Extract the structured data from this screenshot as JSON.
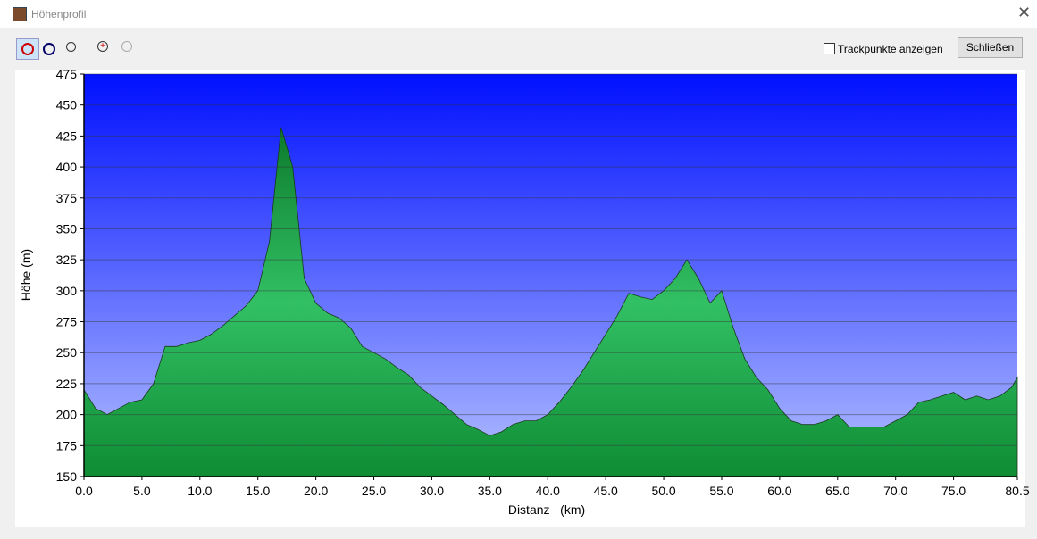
{
  "window": {
    "title": "Höhenprofil",
    "checkbox_label": "Trackpunkte anzeigen",
    "close_button": "Schließen"
  },
  "chart_data": {
    "type": "area",
    "xlabel": "Distanz   (km)",
    "ylabel": "Höhe (m)",
    "color": "#1faa48",
    "grid": true,
    "x": [
      0,
      1,
      2,
      3,
      4,
      5,
      6,
      7,
      8,
      9,
      10,
      11,
      12,
      13,
      14,
      15,
      16,
      17,
      18,
      19,
      20,
      21,
      22,
      23,
      24,
      25,
      26,
      27,
      28,
      29,
      30,
      31,
      32,
      33,
      34,
      35,
      36,
      37,
      38,
      39,
      40,
      41,
      42,
      43,
      44,
      45,
      46,
      47,
      48,
      49,
      50,
      51,
      52,
      53,
      54,
      55,
      56,
      57,
      58,
      59,
      60,
      61,
      62,
      63,
      64,
      65,
      66,
      67,
      68,
      69,
      70,
      71,
      72,
      73,
      74,
      75,
      76,
      77,
      78,
      79,
      80,
      80.5
    ],
    "values": [
      220,
      205,
      200,
      205,
      210,
      212,
      225,
      255,
      255,
      258,
      260,
      265,
      272,
      280,
      288,
      300,
      340,
      432,
      400,
      310,
      290,
      282,
      278,
      270,
      255,
      250,
      245,
      238,
      232,
      222,
      215,
      208,
      200,
      192,
      188,
      183,
      186,
      192,
      195,
      195,
      200,
      210,
      222,
      235,
      250,
      265,
      280,
      298,
      295,
      293,
      300,
      310,
      325,
      310,
      290,
      300,
      270,
      245,
      230,
      220,
      205,
      195,
      192,
      192,
      195,
      200,
      190,
      190,
      190,
      190,
      195,
      200,
      210,
      212,
      215,
      218,
      212,
      215,
      212,
      215,
      222,
      230
    ],
    "xlim": [
      0,
      80.5
    ],
    "ylim": [
      150,
      475
    ],
    "xticks": [
      {
        "value": 0,
        "label": "0.0"
      },
      {
        "value": 5,
        "label": "5.0"
      },
      {
        "value": 10,
        "label": "10.0"
      },
      {
        "value": 15,
        "label": "15.0"
      },
      {
        "value": 20,
        "label": "20.0"
      },
      {
        "value": 25,
        "label": "25.0"
      },
      {
        "value": 30,
        "label": "30.0"
      },
      {
        "value": 35,
        "label": "35.0"
      },
      {
        "value": 40,
        "label": "40.0"
      },
      {
        "value": 45,
        "label": "45.0"
      },
      {
        "value": 50,
        "label": "50.0"
      },
      {
        "value": 55,
        "label": "55.0"
      },
      {
        "value": 60,
        "label": "60.0"
      },
      {
        "value": 65,
        "label": "65.0"
      },
      {
        "value": 70,
        "label": "70.0"
      },
      {
        "value": 75,
        "label": "75.0"
      },
      {
        "value": 80.5,
        "label": "80.5"
      }
    ],
    "yticks": [
      150,
      175,
      200,
      225,
      250,
      275,
      300,
      325,
      350,
      375,
      400,
      425,
      450,
      475
    ]
  }
}
